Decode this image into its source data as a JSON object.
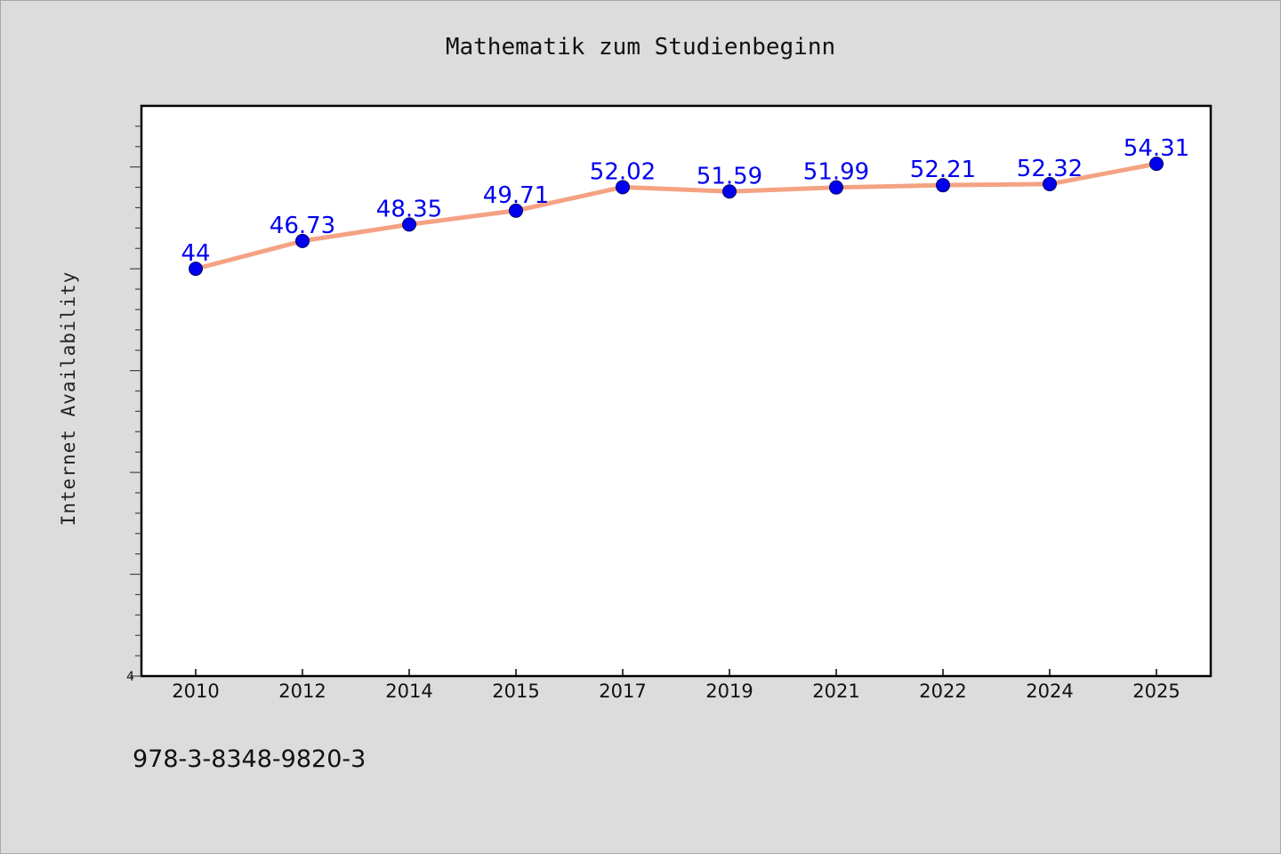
{
  "chart_data": {
    "type": "line",
    "title": "Mathematik zum Studienbeginn",
    "ylabel": "Internet Availability",
    "xlabel": "",
    "categories": [
      "2010",
      "2012",
      "2014",
      "2015",
      "2017",
      "2019",
      "2021",
      "2022",
      "2024",
      "2025"
    ],
    "series": [
      {
        "values": [
          44,
          46.73,
          48.35,
          49.71,
          52.02,
          51.59,
          51.99,
          52.21,
          52.32,
          54.31
        ],
        "labels": [
          "44",
          "46.73",
          "48.35",
          "49.71",
          "52.02",
          "51.59",
          "51.99",
          "52.21",
          "52.32",
          "54.31"
        ]
      }
    ],
    "ylim": [
      4,
      60
    ],
    "yticks_labeled": [
      "4"
    ],
    "grid": false,
    "legend": "none",
    "colors": {
      "line": "#f4a283",
      "marker": "#0000ee",
      "data_label": "#0000ee",
      "plot_background": "#ffffff",
      "page_background": "#dcdcdc"
    }
  },
  "footer": {
    "isbn": "978-3-8348-9820-3"
  }
}
